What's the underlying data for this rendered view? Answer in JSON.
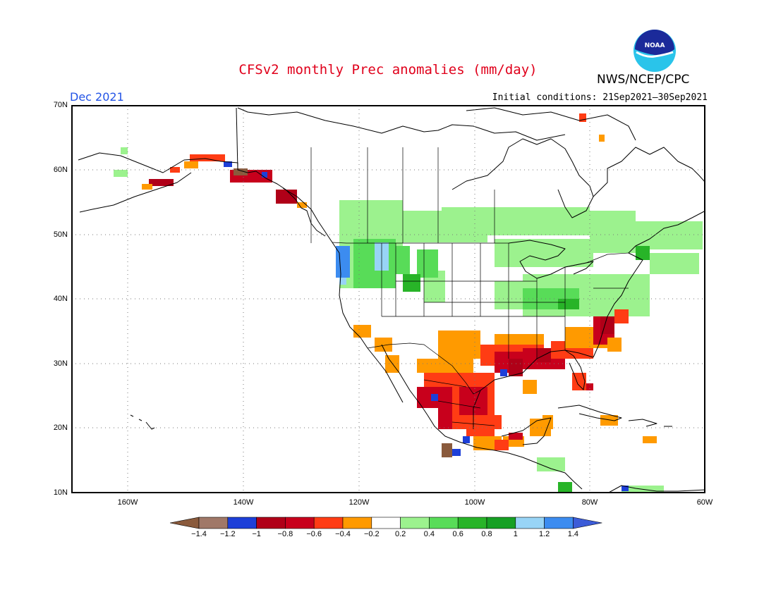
{
  "header": {
    "title": "CFSv2 monthly Prec anomalies (mm/day)",
    "agency": "NWS/NCEP/CPC",
    "month": "Dec 2021",
    "initial_conditions": "Initial conditions: 21Sep2021–30Sep2021",
    "logo_text": "NOAA"
  },
  "axes": {
    "lat_labels": [
      "70N",
      "60N",
      "50N",
      "40N",
      "30N",
      "20N",
      "10N"
    ],
    "lon_labels": [
      "160W",
      "140W",
      "120W",
      "100W",
      "80W",
      "60W"
    ]
  },
  "colorbar": {
    "labels": [
      "−1.4",
      "−1.2",
      "−1",
      "−0.8",
      "−0.6",
      "−0.4",
      "−0.2",
      "0.2",
      "0.4",
      "0.6",
      "0.8",
      "1",
      "1.2",
      "1.4"
    ],
    "colors": [
      "#8a5a3c",
      "#a07868",
      "#1d3fd8",
      "#b00018",
      "#c8001c",
      "#ff3c14",
      "#ff9a00",
      "#ffffff",
      "#9cf28e",
      "#58dc58",
      "#28b428",
      "#16a024",
      "#98d4f6",
      "#3c8cf0",
      "#3c5cd8"
    ]
  },
  "map_colors": {
    "light_green": "#9cf28e",
    "green": "#58dc58",
    "dark_green": "#28b428",
    "orange": "#ff9a00",
    "red_orange": "#ff3c14",
    "red": "#c8001c",
    "dark_red": "#b00018",
    "light_blue": "#98d4f6",
    "blue": "#3c8cf0",
    "dark_blue": "#1d3fd8",
    "brown": "#8a5a3c"
  }
}
